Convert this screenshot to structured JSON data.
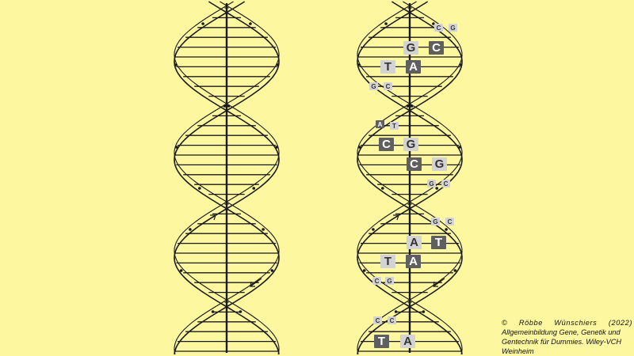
{
  "credit": {
    "copyright": "© Röbbe Wünschiers (2022)",
    "line2": "Allgemeinbildung Gene, Genetik und",
    "line3": "Gentechnik für Dummies. Wiley-VCH",
    "line4": "Weinheim"
  },
  "colors": {
    "background": "#fdf7a0",
    "dark_base": "#5f5f5f",
    "light_base": "#d3d3d3",
    "ink": "#1a1a1a"
  },
  "helix_left": {
    "labels": []
  },
  "helix_right": {
    "base_pairs": [
      {
        "left": "C",
        "right": "G",
        "left_style": "light",
        "right_style": "light",
        "size": "small"
      },
      {
        "left": "G",
        "right": "C",
        "left_style": "light",
        "right_style": "dark",
        "size": "big"
      },
      {
        "left": "T",
        "right": "A",
        "left_style": "light",
        "right_style": "dark",
        "size": "big"
      },
      {
        "left": "G",
        "right": "C",
        "left_style": "light",
        "right_style": "light",
        "size": "small"
      },
      {
        "left": "A",
        "right": "T",
        "left_style": "dark",
        "right_style": "light",
        "size": "small"
      },
      {
        "left": "C",
        "right": "G",
        "left_style": "dark",
        "right_style": "light",
        "size": "big"
      },
      {
        "left": "C",
        "right": "G",
        "left_style": "dark",
        "right_style": "light",
        "size": "big"
      },
      {
        "left": "G",
        "right": "C",
        "left_style": "light",
        "right_style": "light",
        "size": "small"
      },
      {
        "left": "G",
        "right": "C",
        "left_style": "light",
        "right_style": "light",
        "size": "small"
      },
      {
        "left": "A",
        "right": "T",
        "left_style": "light",
        "right_style": "dark",
        "size": "big"
      },
      {
        "left": "T",
        "right": "A",
        "left_style": "light",
        "right_style": "dark",
        "size": "big"
      },
      {
        "left": "C",
        "right": "G",
        "left_style": "light",
        "right_style": "light",
        "size": "small"
      },
      {
        "left": "C",
        "right": "C",
        "left_style": "light",
        "right_style": "light",
        "size": "small"
      },
      {
        "left": "T",
        "right": "A",
        "left_style": "dark",
        "right_style": "light",
        "size": "big"
      }
    ]
  }
}
